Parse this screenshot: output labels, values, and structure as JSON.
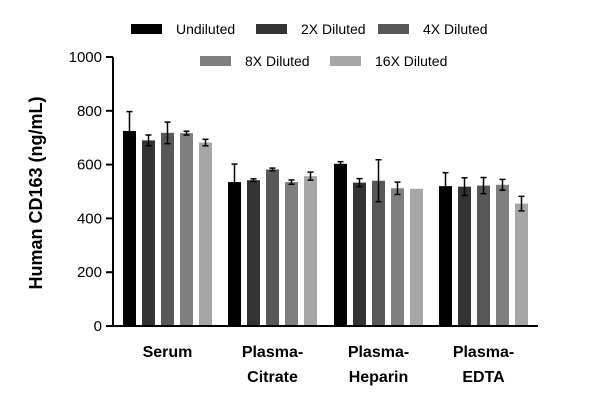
{
  "chart_data": {
    "type": "bar",
    "title": "",
    "xlabel": "",
    "ylabel": "Human CD163 (ng/mL)",
    "ylim": [
      0,
      1000
    ],
    "yticks": [
      0,
      200,
      400,
      600,
      800,
      1000
    ],
    "grid": false,
    "legend_position": "top",
    "categories": [
      [
        "Serum"
      ],
      [
        "Plasma-",
        "Citrate"
      ],
      [
        "Plasma-",
        "Heparin"
      ],
      [
        "Plasma-",
        "EDTA"
      ]
    ],
    "series": [
      {
        "name": "Undiluted",
        "color": "#000000",
        "values": [
          725,
          535,
          603,
          520
        ],
        "errors": [
          72,
          67,
          8,
          50
        ]
      },
      {
        "name": "2X Diluted",
        "color": "#333333",
        "values": [
          690,
          542,
          533,
          518
        ],
        "errors": [
          20,
          5,
          15,
          33
        ]
      },
      {
        "name": "4X Diluted",
        "color": "#585858",
        "values": [
          718,
          582,
          540,
          522
        ],
        "errors": [
          40,
          5,
          78,
          30
        ]
      },
      {
        "name": "8X Diluted",
        "color": "#7f7f7f",
        "values": [
          717,
          535,
          512,
          525
        ],
        "errors": [
          7,
          8,
          23,
          20
        ]
      },
      {
        "name": "16X Diluted",
        "color": "#a6a6a6",
        "values": [
          682,
          557,
          510,
          455
        ],
        "errors": [
          12,
          15,
          0,
          27
        ]
      }
    ]
  }
}
